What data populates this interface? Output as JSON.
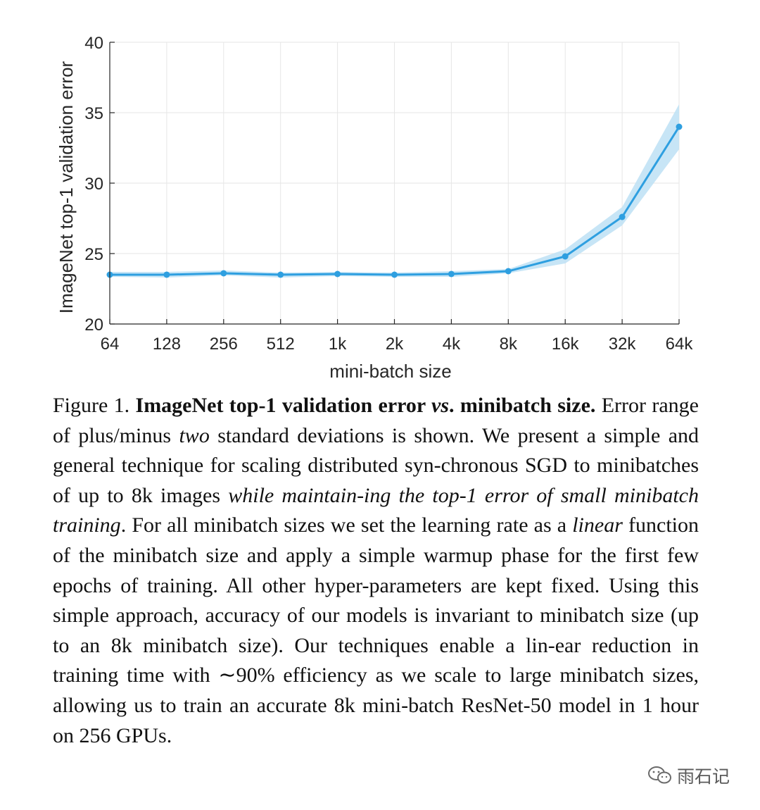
{
  "chart_data": {
    "type": "line",
    "title": "",
    "xlabel": "mini-batch size",
    "ylabel": "ImageNet top-1 validation error",
    "categories": [
      "64",
      "128",
      "256",
      "512",
      "1k",
      "2k",
      "4k",
      "8k",
      "16k",
      "32k",
      "64k"
    ],
    "series": [
      {
        "name": "top-1 validation error",
        "values": [
          23.5,
          23.5,
          23.6,
          23.5,
          23.55,
          23.5,
          23.55,
          23.75,
          24.8,
          27.6,
          34.0
        ],
        "lower": [
          23.35,
          23.3,
          23.45,
          23.3,
          23.4,
          23.35,
          23.35,
          23.6,
          24.3,
          27.0,
          32.4
        ],
        "upper": [
          23.7,
          23.7,
          23.8,
          23.65,
          23.7,
          23.65,
          23.75,
          23.9,
          25.3,
          28.3,
          35.6
        ]
      }
    ],
    "ylim": [
      20,
      40
    ],
    "yticks": [
      "20",
      "25",
      "30",
      "35",
      "40"
    ],
    "grid": true,
    "colors": {
      "line": "#2e9fe0",
      "band": "#bde0f5",
      "grid": "#e6e6e6",
      "axis": "#262626"
    }
  },
  "caption": {
    "label": "Figure 1.",
    "title_part1": "ImageNet top-1 validation error",
    "title_vs": "vs",
    "title_part2": ". minibatch size.",
    "seg1": "Error range of plus/minus",
    "seg1_em": "two",
    "seg2": "standard deviations is shown. We present a simple and general technique for scaling distributed syn-chronous SGD to minibatches of up to 8k images",
    "seg2_em": "while maintain-ing the top-1 error of small minibatch training",
    "seg3": ". For all minibatch sizes we set the learning rate as a",
    "seg3_em": "linear",
    "seg4": "function of the minibatch size and apply a simple warmup phase for the first few epochs of training. All other hyper-parameters are kept fixed. Using this simple approach, accuracy of our models is invariant to minibatch size (up to an 8k minibatch size). Our techniques enable a lin-ear reduction in training time with ∼90% efficiency as we scale to large minibatch sizes, allowing us to train an accurate 8k mini-batch ResNet-50 model in 1 hour on 256 GPUs."
  },
  "watermark": {
    "text": "雨石记",
    "icon": "wechat-icon"
  }
}
